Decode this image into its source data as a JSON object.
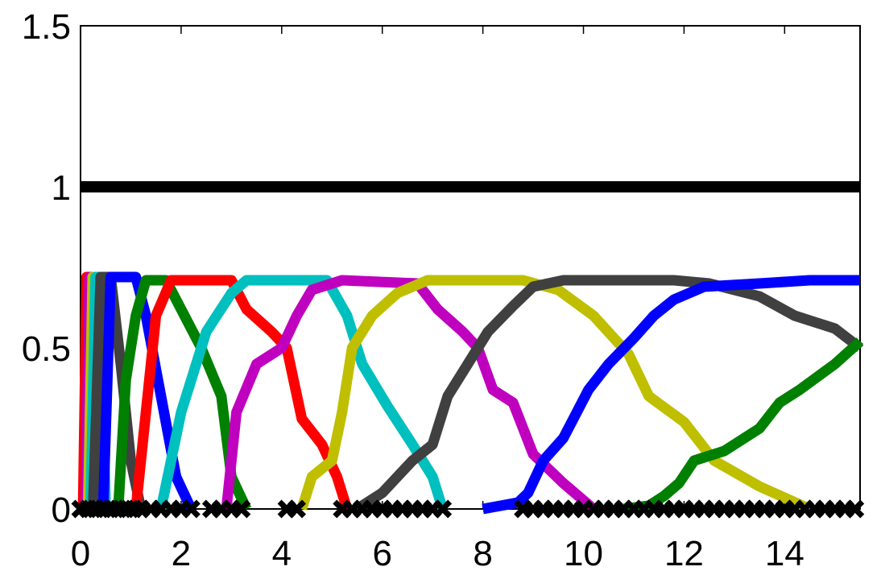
{
  "chart_data": {
    "type": "line",
    "xlim": [
      0,
      15.5
    ],
    "ylim": [
      0,
      1.5
    ],
    "xticks": [
      0,
      2,
      4,
      6,
      8,
      10,
      12,
      14
    ],
    "yticks": [
      0,
      0.5,
      1,
      1.5
    ],
    "series": [
      {
        "color": "#000000",
        "x": [
          0,
          15.5
        ],
        "values": [
          1.0,
          1.0
        ]
      },
      {
        "color": "#ff0000",
        "x": [
          0.05,
          0.12,
          0.2,
          0.28
        ],
        "values": [
          0,
          0.72,
          0.72,
          0
        ]
      },
      {
        "color": "#bf00bf",
        "x": [
          0.1,
          0.18,
          0.26,
          0.34
        ],
        "values": [
          0,
          0.72,
          0.72,
          0
        ]
      },
      {
        "color": "#bfbf00",
        "x": [
          0.15,
          0.24,
          0.32,
          0.42
        ],
        "values": [
          0,
          0.72,
          0.72,
          0
        ]
      },
      {
        "color": "#00bfbf",
        "x": [
          0.2,
          0.3,
          0.38,
          0.5
        ],
        "values": [
          0,
          0.72,
          0.72,
          0
        ]
      },
      {
        "color": "#404040",
        "x": [
          0.25,
          0.4,
          0.6,
          0.8,
          1.0,
          1.2
        ],
        "values": [
          0,
          0.72,
          0.72,
          0.45,
          0.15,
          0
        ]
      },
      {
        "color": "#0000ff",
        "x": [
          0.45,
          0.6,
          1.1,
          1.3,
          1.6,
          1.9,
          2.2
        ],
        "values": [
          0,
          0.72,
          0.72,
          0.6,
          0.35,
          0.1,
          0
        ]
      },
      {
        "color": "#008000",
        "x": [
          0.75,
          0.9,
          1.1,
          1.3,
          1.7,
          2.0,
          2.4,
          2.8,
          3.0,
          3.3
        ],
        "values": [
          0,
          0.4,
          0.6,
          0.71,
          0.71,
          0.62,
          0.5,
          0.35,
          0.1,
          0
        ]
      },
      {
        "color": "#ff0000",
        "x": [
          1.1,
          1.3,
          1.5,
          1.8,
          3.0,
          3.3,
          3.8,
          4.1,
          4.4,
          4.8,
          5.1,
          5.3
        ],
        "values": [
          0,
          0.3,
          0.6,
          0.71,
          0.71,
          0.62,
          0.55,
          0.5,
          0.28,
          0.2,
          0.1,
          0
        ]
      },
      {
        "color": "#00bfbf",
        "x": [
          1.6,
          2.0,
          2.5,
          3.0,
          3.3,
          4.9,
          5.3,
          5.6,
          6.1,
          6.6,
          7.0,
          7.2
        ],
        "values": [
          0,
          0.3,
          0.55,
          0.67,
          0.71,
          0.71,
          0.6,
          0.45,
          0.32,
          0.2,
          0.1,
          0
        ]
      },
      {
        "color": "#bf00bf",
        "x": [
          2.9,
          3.1,
          3.5,
          4.0,
          4.3,
          4.6,
          5.2,
          6.7,
          7.1,
          7.6,
          7.9,
          8.2,
          8.6,
          9.0,
          9.6,
          10.2
        ],
        "values": [
          0,
          0.3,
          0.45,
          0.5,
          0.6,
          0.68,
          0.71,
          0.7,
          0.62,
          0.55,
          0.5,
          0.37,
          0.33,
          0.17,
          0.08,
          0
        ]
      },
      {
        "color": "#bfbf00",
        "x": [
          4.4,
          4.6,
          5.0,
          5.2,
          5.4,
          5.8,
          6.3,
          6.9,
          8.8,
          9.5,
          10.2,
          10.9,
          11.3,
          12.0,
          12.6,
          13.5,
          14.5
        ],
        "values": [
          0,
          0.1,
          0.15,
          0.3,
          0.5,
          0.6,
          0.67,
          0.71,
          0.71,
          0.68,
          0.6,
          0.48,
          0.35,
          0.27,
          0.15,
          0.07,
          0
        ]
      },
      {
        "color": "#404040",
        "x": [
          5.5,
          6.0,
          6.6,
          7.0,
          7.3,
          7.7,
          8.1,
          8.6,
          9.0,
          9.6,
          11.8,
          12.5,
          13.5,
          14.2,
          15.0,
          15.5
        ],
        "values": [
          0,
          0.05,
          0.15,
          0.2,
          0.35,
          0.45,
          0.55,
          0.63,
          0.69,
          0.71,
          0.71,
          0.7,
          0.66,
          0.6,
          0.56,
          0.5
        ]
      },
      {
        "color": "#0000ff",
        "x": [
          8.0,
          8.7,
          8.9,
          9.2,
          9.6,
          10.1,
          10.5,
          11.0,
          11.4,
          11.8,
          12.4,
          13.5,
          14.5,
          15.5
        ],
        "values": [
          0,
          0.02,
          0.05,
          0.15,
          0.22,
          0.37,
          0.45,
          0.53,
          0.6,
          0.65,
          0.69,
          0.7,
          0.71,
          0.71
        ]
      },
      {
        "color": "#008000",
        "x": [
          10.8,
          11.3,
          11.6,
          11.9,
          12.2,
          12.8,
          13.5,
          13.9,
          14.3,
          15.0,
          15.5
        ],
        "values": [
          0,
          0.01,
          0.04,
          0.08,
          0.15,
          0.18,
          0.25,
          0.33,
          0.37,
          0.45,
          0.52
        ]
      },
      {
        "color": "#000000",
        "marker": "x",
        "x": [
          0,
          0.15,
          0.3,
          0.45,
          0.6,
          0.75,
          0.9,
          1.05,
          1.2,
          1.4,
          1.6,
          1.8,
          2.0,
          2.2,
          2.6,
          2.8,
          3.0,
          3.2,
          4.1,
          4.3,
          5.2,
          5.4,
          5.6,
          5.8,
          6.0,
          6.2,
          6.4,
          6.6,
          6.8,
          7.0,
          7.2,
          8.8,
          9.0,
          9.2,
          9.4,
          9.6,
          9.8,
          10.0,
          10.2,
          10.4,
          10.6,
          10.8,
          11.0,
          11.2,
          11.4,
          11.6,
          11.8,
          12.0,
          12.2,
          12.4,
          12.6,
          12.8,
          13.0,
          13.2,
          13.4,
          13.6,
          13.8,
          14.0,
          14.2,
          14.4,
          14.6,
          14.8,
          15.0,
          15.2,
          15.4
        ],
        "values": [
          0,
          0,
          0,
          0,
          0,
          0,
          0,
          0,
          0,
          0,
          0,
          0,
          0,
          0,
          0,
          0,
          0,
          0,
          0,
          0,
          0,
          0,
          0,
          0,
          0,
          0,
          0,
          0,
          0,
          0,
          0,
          0,
          0,
          0,
          0,
          0,
          0,
          0,
          0,
          0,
          0,
          0,
          0,
          0,
          0,
          0,
          0,
          0,
          0,
          0,
          0,
          0,
          0,
          0,
          0,
          0,
          0,
          0,
          0,
          0,
          0,
          0,
          0,
          0,
          0
        ]
      }
    ]
  }
}
